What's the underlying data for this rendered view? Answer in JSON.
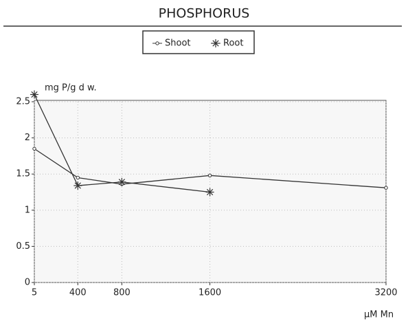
{
  "chart_data": {
    "type": "line",
    "title": "PHOSPHORUS",
    "y_label": "mg P/g d w.",
    "x_label": "µM Mn",
    "x": [
      5,
      400,
      800,
      1600,
      3200
    ],
    "series": [
      {
        "name": "Shoot",
        "color": "#333333",
        "marker": "circle",
        "values": [
          1.85,
          1.45,
          1.36,
          1.48,
          1.31
        ]
      },
      {
        "name": "Root",
        "color": "#333333",
        "marker": "asterisk",
        "values": [
          2.6,
          1.34,
          1.39,
          1.25,
          null
        ]
      }
    ],
    "xlim": [
      5,
      3200
    ],
    "xticks": [
      5,
      400,
      800,
      1600,
      3200
    ],
    "ylim": [
      0,
      2.5
    ],
    "yticks": [
      0,
      0.5,
      1,
      1.5,
      2,
      2.5
    ],
    "grid": true,
    "legend": "top"
  }
}
